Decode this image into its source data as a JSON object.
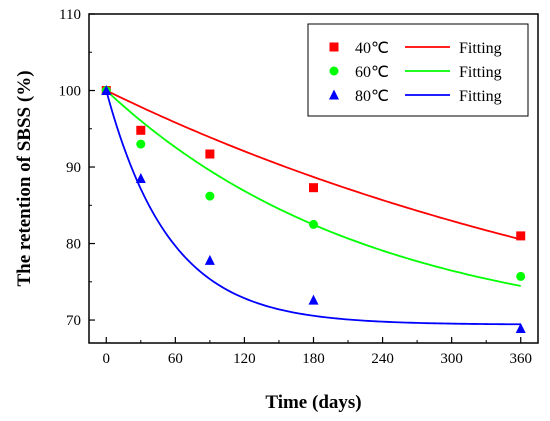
{
  "chart_data": {
    "type": "scatter",
    "title": "",
    "xlabel": "Time (days)",
    "ylabel": "The retention of SBSS (%)",
    "xlim": [
      -15,
      375
    ],
    "ylim": [
      67,
      110
    ],
    "xticks": [
      0,
      60,
      120,
      180,
      240,
      300,
      360
    ],
    "yticks": [
      70,
      80,
      90,
      100,
      110
    ],
    "legend_position": "top-right",
    "legend_fit_label": "Fitting",
    "series": [
      {
        "name": "40℃",
        "color": "#ff0000",
        "marker": "square",
        "x": [
          0,
          30,
          90,
          180,
          360
        ],
        "y": [
          100.0,
          94.8,
          91.7,
          87.3,
          81.0
        ],
        "fit": {
          "model": "exponential_decay",
          "y0": 59.5,
          "A": 40.5,
          "tau": 550
        }
      },
      {
        "name": "60℃",
        "color": "#00ff00",
        "marker": "circle",
        "x": [
          0,
          30,
          90,
          180,
          360
        ],
        "y": [
          100.0,
          93.0,
          86.2,
          82.5,
          75.7
        ],
        "fit": {
          "model": "exponential_decay",
          "y0": 67.7,
          "A": 32.3,
          "tau": 230
        }
      },
      {
        "name": "80℃",
        "color": "#0000ff",
        "marker": "triangle",
        "x": [
          0,
          30,
          90,
          180,
          360
        ],
        "y": [
          100.0,
          88.5,
          77.8,
          72.6,
          68.9
        ],
        "fit": {
          "model": "exponential_decay",
          "y0": 69.4,
          "A": 30.6,
          "tau": 55
        }
      }
    ]
  }
}
